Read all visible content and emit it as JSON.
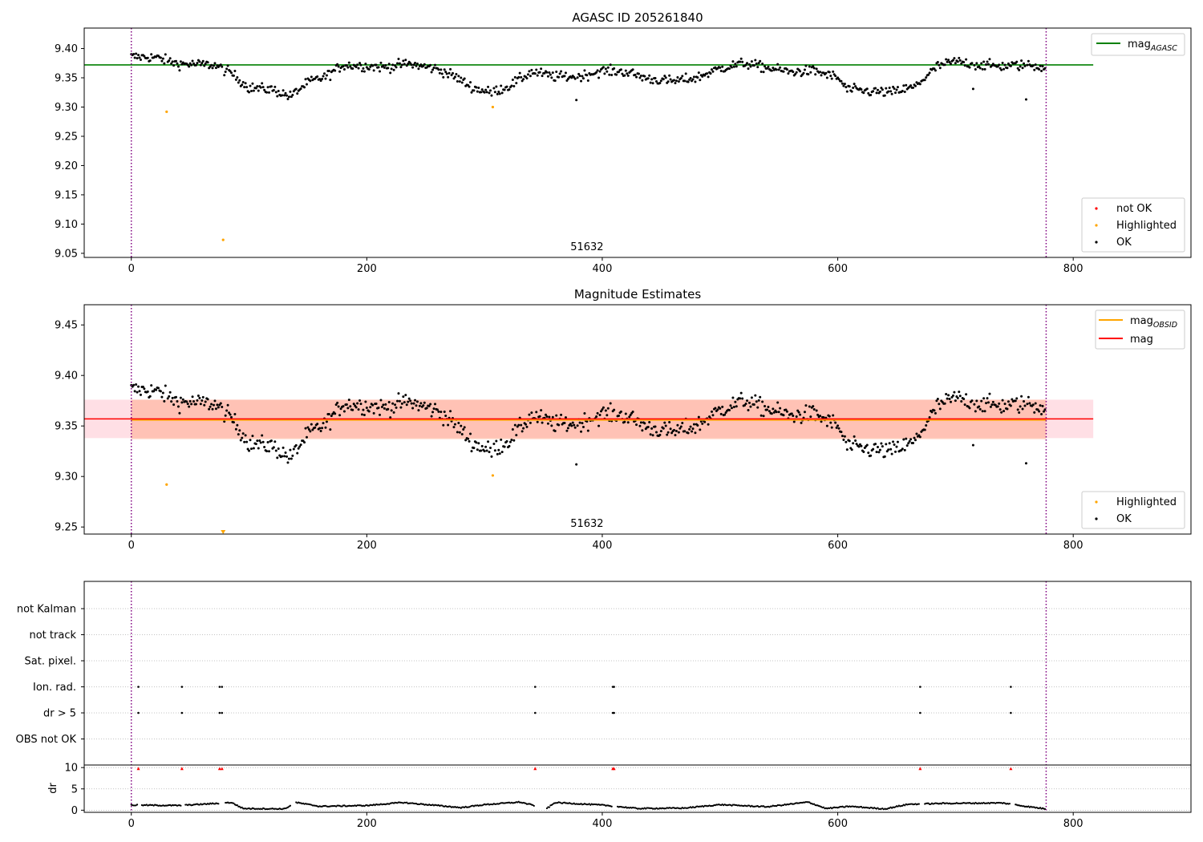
{
  "colors": {
    "ok": "#000000",
    "not_ok": "#ff0000",
    "highlighted": "#ffa500",
    "mag_agasc": "#008000",
    "mag_obsid": "#ffa500",
    "mag": "#ff0000",
    "band_mag": "#ffc0cb",
    "band_obsid": "#ffa07a",
    "obs_boundary": "#800080",
    "grid": "#b0b0b0"
  },
  "chart_data": [
    {
      "type": "scatter",
      "title": "AGASC ID 205261840",
      "xlim": [
        -40,
        900
      ],
      "ylim": [
        9.043,
        9.435
      ],
      "xticks": [
        0,
        200,
        400,
        600,
        800
      ],
      "yticks": [
        9.05,
        9.1,
        9.15,
        9.2,
        9.25,
        9.3,
        9.35,
        9.4
      ],
      "obsid_label": "51632",
      "obsid_label_x": 387,
      "obs_boundaries": [
        0,
        777
      ],
      "hlines": [
        {
          "name": "mag_AGASC",
          "y": 9.372,
          "x": [
            -40,
            817
          ]
        }
      ],
      "highlighted_points": [
        [
          30,
          9.292
        ],
        [
          78,
          9.073
        ],
        [
          307,
          9.3
        ]
      ],
      "not_ok_points": [],
      "ok_series": {
        "n": 777,
        "outliers": [
          [
            378,
            9.312
          ],
          [
            715,
            9.331
          ],
          [
            760,
            9.313
          ]
        ]
      },
      "legend_main": {
        "position": "upper right",
        "entries": [
          {
            "label": "mag",
            "sub": "AGASC"
          }
        ]
      },
      "legend_points": {
        "position": "lower right",
        "entries": [
          "not OK",
          "Highlighted",
          "OK"
        ]
      }
    },
    {
      "type": "scatter",
      "title": "Magnitude Estimates",
      "xlim": [
        -40,
        900
      ],
      "ylim": [
        9.243,
        9.47
      ],
      "xticks": [
        0,
        200,
        400,
        600,
        800
      ],
      "yticks": [
        9.25,
        9.3,
        9.35,
        9.4,
        9.45
      ],
      "obsid_label": "51632",
      "obsid_label_x": 387,
      "obs_boundaries": [
        0,
        777
      ],
      "mag": {
        "value": 9.357,
        "band": [
          9.338,
          9.376
        ],
        "x": [
          -40,
          817
        ]
      },
      "mag_obsid": {
        "value": 9.356,
        "band": [
          9.337,
          9.376
        ],
        "x": [
          0,
          777
        ]
      },
      "highlighted_points": [
        [
          30,
          9.292
        ],
        [
          307,
          9.301
        ]
      ],
      "off_scale_marker": {
        "x": 78,
        "y": 9.243
      },
      "legend_main": {
        "position": "upper right",
        "entries": [
          {
            "label": "mag",
            "sub": "OBSID"
          },
          {
            "label": "mag",
            "sub": ""
          }
        ]
      },
      "legend_points": {
        "position": "lower right",
        "entries": [
          "Highlighted",
          "OK"
        ]
      }
    },
    {
      "type": "scatter",
      "title": "",
      "xlim": [
        -40,
        900
      ],
      "xticks": [
        0,
        200,
        400,
        600,
        800
      ],
      "obs_boundaries": [
        0,
        777
      ],
      "flag_rows": [
        "not Kalman",
        "not track",
        "Sat. pixel.",
        "Ion. rad.",
        "dr > 5",
        "OBS not OK"
      ],
      "flag_points": {
        "Ion. rad.": [
          6,
          43,
          75,
          77,
          343,
          409,
          410,
          670,
          747
        ],
        "dr > 5": [
          6,
          43,
          75,
          77,
          343,
          409,
          410,
          670,
          747
        ]
      }
    },
    {
      "type": "scatter",
      "ylabel": "dr",
      "ylim": [
        -0.5,
        10.6
      ],
      "yticks": [
        0,
        5,
        10
      ],
      "xlim": [
        -40,
        900
      ],
      "xticks": [
        0,
        200,
        400,
        600,
        800
      ],
      "obs_boundaries": [
        0,
        777
      ],
      "clipped_markers_x": [
        6,
        43,
        75,
        77,
        343,
        409,
        410,
        670,
        747
      ],
      "clip_value": 10,
      "gaps": [
        [
          6,
          8
        ],
        [
          43,
          45
        ],
        [
          75,
          79
        ],
        [
          136,
          139
        ],
        [
          343,
          352
        ],
        [
          409,
          412
        ],
        [
          670,
          673
        ],
        [
          747,
          750
        ]
      ]
    }
  ]
}
